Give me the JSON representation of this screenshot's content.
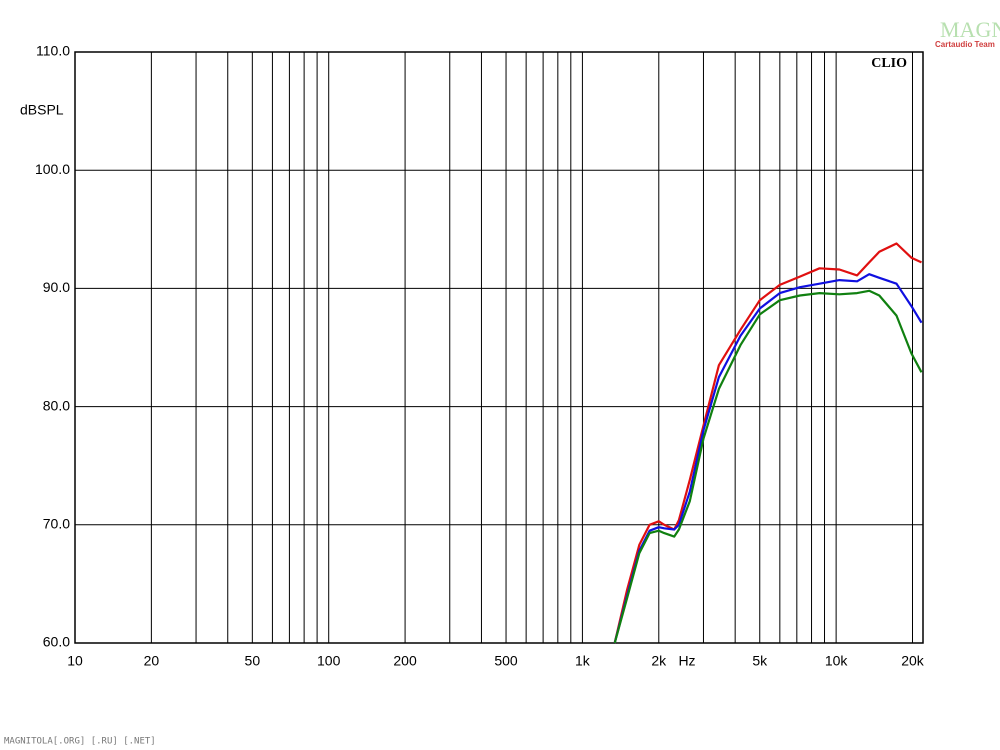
{
  "chart_data": {
    "type": "line",
    "y_label": "dBSPL",
    "x_unit_label": "Hz",
    "brand": "CLIO",
    "watermark": "MAGNITOLA",
    "watermark_sub": "Cartaudio Team",
    "footer": "MAGNITOLA[.ORG] [.RU] [.NET]",
    "log_x": true,
    "grid": true,
    "xlim": [
      10,
      22000
    ],
    "ylim": [
      60,
      110
    ],
    "xticks": [
      10,
      20,
      50,
      100,
      200,
      500,
      {
        "value": 1000,
        "label": "1k"
      },
      {
        "value": 2000,
        "label": "2k"
      },
      {
        "value": 5000,
        "label": "5k"
      },
      {
        "value": 10000,
        "label": "10k"
      },
      {
        "value": 20000,
        "label": "20k"
      }
    ],
    "xminor": [
      30,
      40,
      60,
      70,
      80,
      90,
      300,
      400,
      600,
      700,
      800,
      900,
      3000,
      4000,
      6000,
      7000,
      8000,
      9000
    ],
    "yticks": [
      {
        "value": 60,
        "label": "60.0"
      },
      {
        "value": 70,
        "label": "70.0"
      },
      {
        "value": 80,
        "label": "80.0"
      },
      {
        "value": 90,
        "label": "90.0"
      },
      {
        "value": 100,
        "label": "100.0"
      },
      {
        "value": 110,
        "label": "110.0"
      }
    ],
    "x": [
      1340,
      1500,
      1675,
      1840,
      2000,
      2100,
      2300,
      2400,
      2650,
      3000,
      3450,
      4200,
      5000,
      6000,
      7200,
      8600,
      10300,
      12100,
      13500,
      14800,
      17300,
      19800,
      21700
    ],
    "series": [
      {
        "name": "red",
        "color": "#e01010",
        "values": [
          60,
          64.5,
          68.3,
          70.0,
          70.3,
          70.0,
          69.6,
          70.4,
          73.8,
          78.4,
          83.5,
          86.5,
          89.0,
          90.3,
          91.0,
          91.7,
          91.6,
          91.1,
          92.2,
          93.1,
          93.8,
          92.6,
          92.2
        ]
      },
      {
        "name": "blue",
        "color": "#1010e0",
        "values": [
          60,
          64.0,
          67.8,
          69.5,
          69.8,
          69.7,
          69.6,
          70.0,
          72.8,
          78.0,
          82.5,
          86.0,
          88.3,
          89.6,
          90.1,
          90.4,
          90.7,
          90.6,
          91.2,
          90.9,
          90.4,
          88.5,
          87.1
        ]
      },
      {
        "name": "green",
        "color": "#108010",
        "values": [
          60,
          63.8,
          67.6,
          69.3,
          69.5,
          69.3,
          69.0,
          69.6,
          72.0,
          77.3,
          81.5,
          85.2,
          87.8,
          89.0,
          89.4,
          89.6,
          89.5,
          89.6,
          89.8,
          89.4,
          87.7,
          84.5,
          82.9
        ]
      }
    ]
  }
}
